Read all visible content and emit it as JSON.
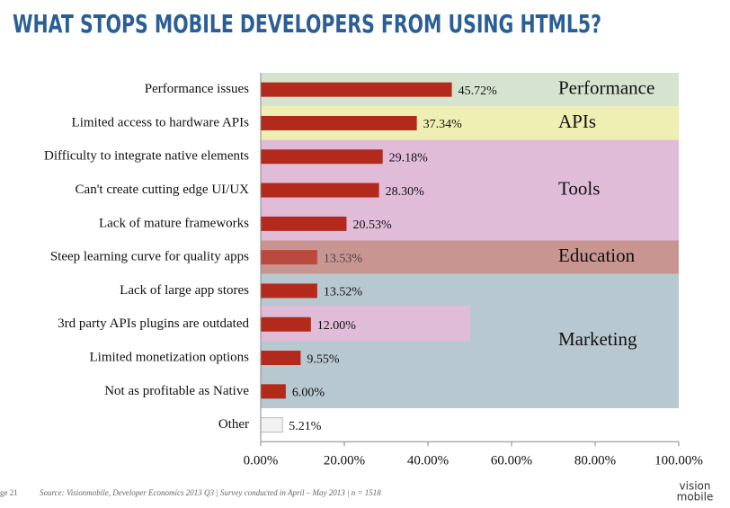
{
  "chart_data": {
    "type": "barh",
    "title": "WHAT STOPS MOBILE DEVELOPERS FROM USING HTML5?",
    "categories": [
      "Performance issues",
      "Limited access to hardware APIs",
      "Difficulty to integrate native elements",
      "Can't create cutting edge UI/UX",
      "Lack of mature frameworks",
      "Steep learning curve for quality apps",
      "Lack of large app stores",
      "3rd party APIs plugins are outdated",
      "Limited monetization options",
      "Not as profitable as Native",
      "Other"
    ],
    "values": [
      45.72,
      37.34,
      29.18,
      28.3,
      20.53,
      13.53,
      13.52,
      12.0,
      9.55,
      6.0,
      5.21
    ],
    "value_labels": [
      "45.72%",
      "37.34%",
      "29.18%",
      "28.30%",
      "20.53%",
      "13.53%",
      "13.52%",
      "12.00%",
      "9.55%",
      "6.00%",
      "5.21%"
    ],
    "colors": [
      "#b3291b",
      "#b3291b",
      "#b3291b",
      "#b3291b",
      "#b3291b",
      "#b3291b",
      "#b3291b",
      "#b3291b",
      "#b3291b",
      "#b3291b",
      "#f2f2f2"
    ],
    "bands": [
      {
        "label": "Performance",
        "color": "#d6e3cf"
      },
      {
        "label": "APIs",
        "color": "#efeeb3"
      },
      {
        "label": "Tools",
        "color": "#e1bcd8"
      },
      {
        "label": "Education",
        "color": "#c89590"
      },
      {
        "label": "Marketing",
        "color": "#b7c8d1"
      }
    ],
    "xlim": [
      0,
      100
    ],
    "xticks": [
      {
        "value": 0,
        "label": "0.00%"
      },
      {
        "value": 20,
        "label": "20.00%"
      },
      {
        "value": 40,
        "label": "40.00%"
      },
      {
        "value": 60,
        "label": "60.00%"
      },
      {
        "value": 80,
        "label": "80.00%"
      },
      {
        "value": 100,
        "label": "100.00%"
      }
    ]
  },
  "footer": {
    "page": "ge 21",
    "source": "Source: Visionmobile, Developer Economics 2013 Q3 | Survey conducted in April – May 2013 | n = 1518",
    "logo": [
      "vision",
      "mobile"
    ]
  }
}
